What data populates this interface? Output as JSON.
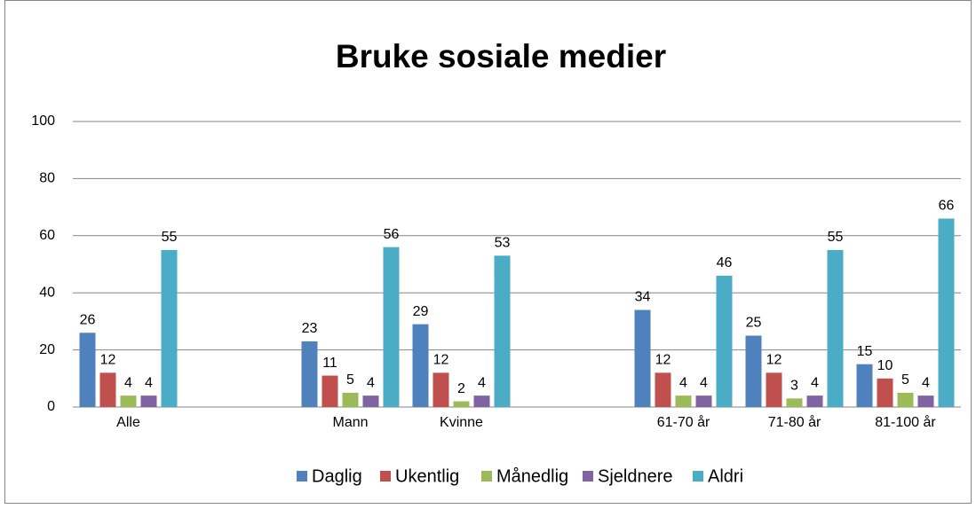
{
  "chart_data": {
    "type": "bar",
    "title": "Bruke sosiale medier",
    "categories": [
      "Alle",
      null,
      "Mann",
      "Kvinne",
      null,
      "61-70 år",
      "71-80 år",
      "81-100 år"
    ],
    "series": [
      {
        "name": "Daglig",
        "color": "#4f81bd",
        "values": [
          26,
          null,
          23,
          29,
          null,
          34,
          25,
          15
        ]
      },
      {
        "name": "Ukentlig",
        "color": "#c0504d",
        "values": [
          12,
          null,
          11,
          12,
          null,
          12,
          12,
          10
        ]
      },
      {
        "name": "Månedlig",
        "color": "#9bbb59",
        "values": [
          4,
          null,
          5,
          2,
          null,
          4,
          3,
          5
        ]
      },
      {
        "name": "Sjeldnere",
        "color": "#8064a2",
        "values": [
          4,
          null,
          4,
          4,
          null,
          4,
          4,
          4
        ]
      },
      {
        "name": "Aldri",
        "color": "#4bacc6",
        "values": [
          55,
          null,
          56,
          53,
          null,
          46,
          55,
          66
        ]
      }
    ],
    "ylim": [
      0,
      100
    ],
    "yticks": [
      0,
      20,
      40,
      60,
      80,
      100
    ],
    "grid": true,
    "legend": "bottom"
  }
}
